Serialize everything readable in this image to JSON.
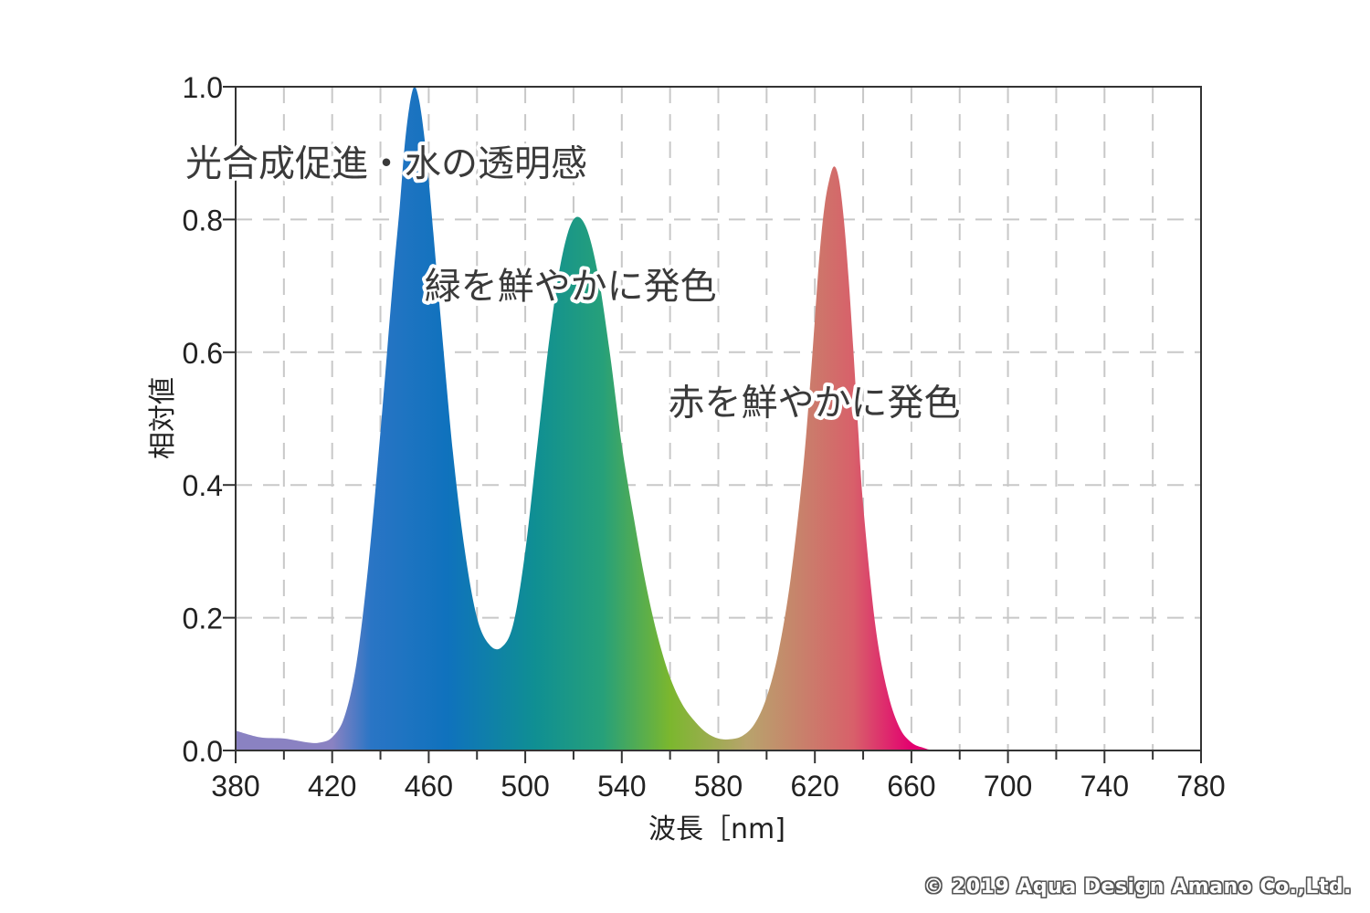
{
  "chart_data": {
    "type": "area",
    "title": "",
    "xlabel": "波長［nm]",
    "ylabel": "相対値",
    "xlim": [
      380,
      780
    ],
    "ylim": [
      0,
      1.0
    ],
    "x_ticks": [
      "380",
      "420",
      "460",
      "500",
      "540",
      "580",
      "620",
      "660",
      "700",
      "740",
      "780"
    ],
    "y_ticks": [
      "0.0",
      "0.2",
      "0.4",
      "0.6",
      "0.8",
      "1.0"
    ],
    "grid": true,
    "x": [
      380,
      390,
      400,
      410,
      415,
      420,
      425,
      430,
      435,
      440,
      445,
      448,
      450,
      452,
      454,
      456,
      458,
      460,
      465,
      470,
      475,
      480,
      485,
      490,
      495,
      500,
      505,
      510,
      515,
      520,
      525,
      530,
      535,
      540,
      545,
      550,
      555,
      560,
      565,
      570,
      575,
      580,
      585,
      590,
      595,
      600,
      605,
      610,
      615,
      618,
      620,
      622,
      624,
      626,
      628,
      630,
      632,
      634,
      636,
      638,
      640,
      645,
      650,
      655,
      660,
      665,
      670,
      680,
      700,
      740,
      780
    ],
    "y": [
      0.03,
      0.02,
      0.018,
      0.012,
      0.012,
      0.02,
      0.05,
      0.13,
      0.28,
      0.48,
      0.7,
      0.82,
      0.91,
      0.97,
      1.0,
      0.98,
      0.93,
      0.86,
      0.65,
      0.45,
      0.3,
      0.2,
      0.16,
      0.155,
      0.19,
      0.3,
      0.46,
      0.62,
      0.74,
      0.8,
      0.79,
      0.72,
      0.6,
      0.46,
      0.35,
      0.25,
      0.17,
      0.11,
      0.07,
      0.045,
      0.027,
      0.018,
      0.017,
      0.022,
      0.04,
      0.08,
      0.15,
      0.26,
      0.42,
      0.55,
      0.65,
      0.75,
      0.82,
      0.86,
      0.88,
      0.86,
      0.8,
      0.71,
      0.6,
      0.48,
      0.37,
      0.19,
      0.09,
      0.035,
      0.012,
      0.004,
      0.0,
      0.0,
      0.0,
      0.0,
      0.0
    ],
    "annotations": [
      {
        "text": "光合成促進・水の透明感",
        "x": 380,
        "y": 0.885
      },
      {
        "text": "緑を鮮やかに発色",
        "x": 479,
        "y": 0.7
      },
      {
        "text": "赤を鮮やかに発色",
        "x": 580,
        "y": 0.525
      }
    ]
  },
  "colors": {
    "gradient": [
      "#8a82c2",
      "#2a75c5",
      "#0f72bd",
      "#0f8f93",
      "#26a07a",
      "#7bb72e",
      "#b8a36c",
      "#d8606a",
      "#e3006f"
    ],
    "grid": "#c8c8c8",
    "axis": "#333333",
    "annotation_text": "#3a3a3a"
  },
  "copyright": "© 2019 Aqua Design Amano Co.,Ltd."
}
